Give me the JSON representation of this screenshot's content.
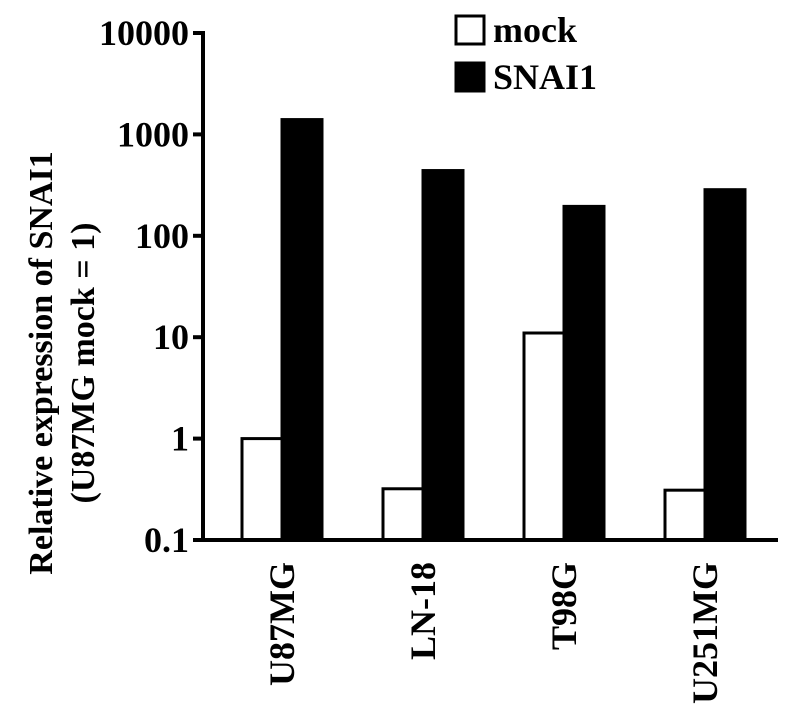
{
  "chart_data": {
    "type": "bar",
    "yscale": "log",
    "ylim": [
      0.1,
      10000
    ],
    "yticks": [
      {
        "value": 0.1,
        "label": "0.1"
      },
      {
        "value": 1,
        "label": "1"
      },
      {
        "value": 10,
        "label": "10"
      },
      {
        "value": 100,
        "label": "100"
      },
      {
        "value": 1000,
        "label": "1000"
      },
      {
        "value": 10000,
        "label": "10000"
      }
    ],
    "ylabel": [
      "Relative expression of SNAI1",
      "(U87MG mock  = 1)"
    ],
    "categories": [
      "U87MG",
      "LN-18",
      "T98G",
      "U251MG"
    ],
    "series": [
      {
        "name": "mock",
        "color": "#ffffff",
        "values": [
          1,
          0.32,
          11,
          0.31
        ]
      },
      {
        "name": "SNAI1",
        "color": "#000000",
        "values": [
          1400,
          440,
          195,
          285
        ]
      }
    ],
    "legend": "top-right",
    "grid": false
  }
}
